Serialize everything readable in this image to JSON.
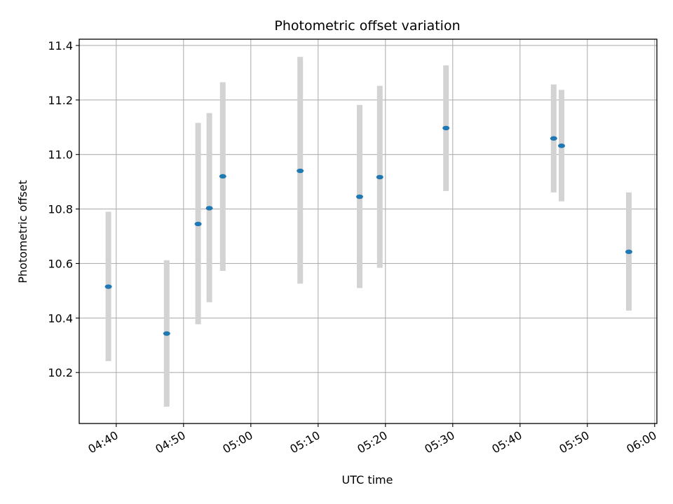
{
  "chart_data": {
    "type": "scatter",
    "title": "Photometric offset variation",
    "xlabel": "UTC time",
    "ylabel": "Photometric offset",
    "xlim": [
      "04:34:30",
      "06:00:20"
    ],
    "ylim": [
      10.013,
      11.423
    ],
    "xticks": [
      "04:40",
      "04:50",
      "05:00",
      "05:10",
      "05:20",
      "05:30",
      "05:40",
      "05:50",
      "06:00"
    ],
    "yticks": [
      10.2,
      10.4,
      10.6,
      10.8,
      11.0,
      11.2,
      11.4
    ],
    "ytick_labels": [
      "10.2",
      "10.4",
      "10.6",
      "10.8",
      "11.0",
      "11.2",
      "11.4"
    ],
    "grid": true,
    "point_color": "#1f77b4",
    "errorbar_color": "#d3d3d3",
    "points": [
      {
        "x": "04:38:50",
        "y": 10.515,
        "ylow": 10.242,
        "yhigh": 10.79
      },
      {
        "x": "04:47:30",
        "y": 10.343,
        "ylow": 10.075,
        "yhigh": 10.612
      },
      {
        "x": "04:52:10",
        "y": 10.745,
        "ylow": 10.377,
        "yhigh": 11.116
      },
      {
        "x": "04:53:50",
        "y": 10.803,
        "ylow": 10.458,
        "yhigh": 11.152
      },
      {
        "x": "04:55:50",
        "y": 10.92,
        "ylow": 10.573,
        "yhigh": 11.265
      },
      {
        "x": "05:07:20",
        "y": 10.94,
        "ylow": 10.526,
        "yhigh": 11.358
      },
      {
        "x": "05:16:10",
        "y": 10.845,
        "ylow": 10.51,
        "yhigh": 11.182
      },
      {
        "x": "05:19:10",
        "y": 10.917,
        "ylow": 10.584,
        "yhigh": 11.252
      },
      {
        "x": "05:29:00",
        "y": 11.097,
        "ylow": 10.866,
        "yhigh": 11.327
      },
      {
        "x": "05:45:00",
        "y": 11.059,
        "ylow": 10.861,
        "yhigh": 11.257
      },
      {
        "x": "05:46:10",
        "y": 11.032,
        "ylow": 10.828,
        "yhigh": 11.237
      },
      {
        "x": "05:56:10",
        "y": 10.643,
        "ylow": 10.427,
        "yhigh": 10.861
      }
    ]
  }
}
